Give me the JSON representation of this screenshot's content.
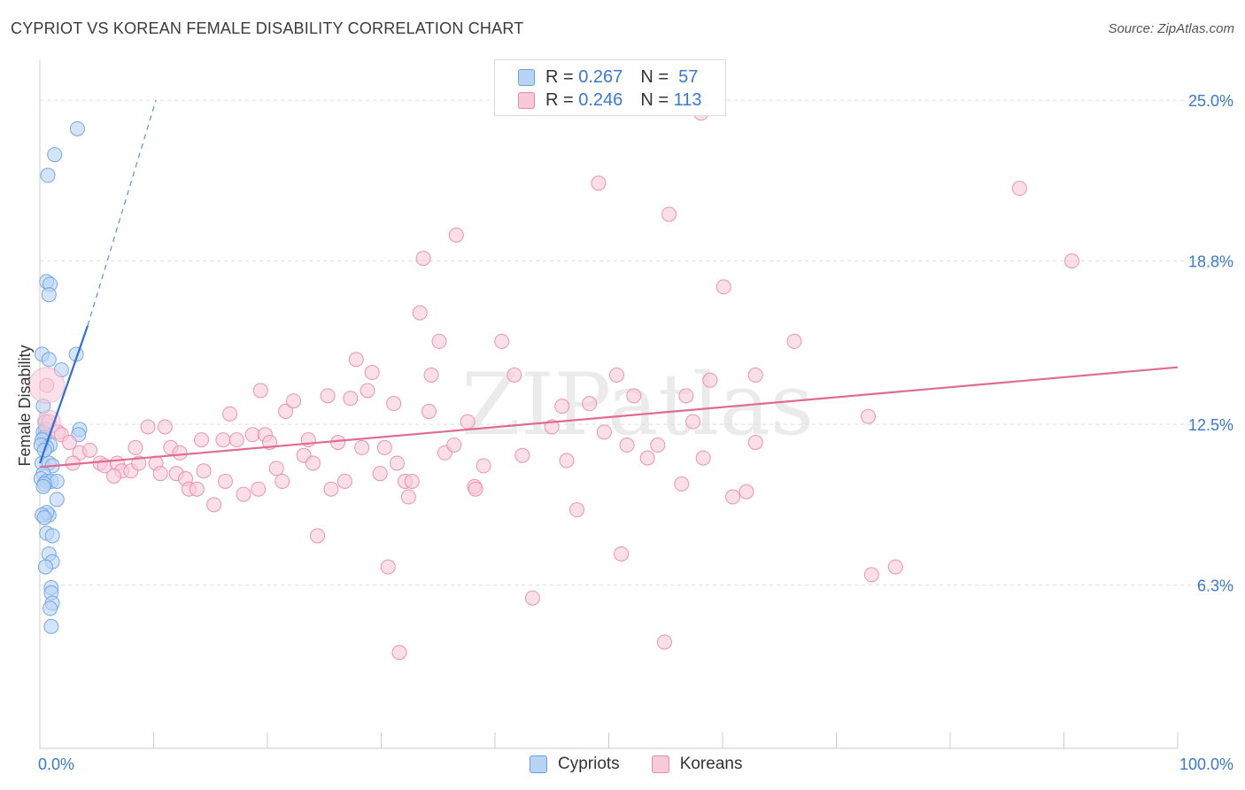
{
  "chart_data": {
    "type": "scatter",
    "title": "CYPRIOT VS KOREAN FEMALE DISABILITY CORRELATION CHART",
    "source": "Source: ZipAtlas.com",
    "xlabel": "",
    "ylabel": "Female Disability",
    "xlim": [
      0,
      100
    ],
    "ylim": [
      0,
      26.2
    ],
    "x_tick_labels": [
      "0.0%",
      "100.0%"
    ],
    "y_ticks": [
      6.3,
      12.5,
      18.8,
      25.0
    ],
    "y_tick_labels": [
      "6.3%",
      "12.5%",
      "18.8%",
      "25.0%"
    ],
    "grid": true,
    "legend": [
      {
        "name": "Cypriots",
        "r_label": "R =",
        "r": "0.267",
        "n_label": "N =",
        "n": "57",
        "color": "#6a9fe0",
        "fill": "#b8d4f5"
      },
      {
        "name": "Koreans",
        "r_label": "R =",
        "r": "0.246",
        "n_label": "N =",
        "n": "113",
        "color": "#e88aaa",
        "fill": "#f8c9d8"
      }
    ],
    "watermark": "ZIPatlas",
    "series": [
      {
        "name": "Cypriots",
        "trend": {
          "x": [
            0.0,
            4.2
          ],
          "y": [
            11.0,
            16.3
          ],
          "dash_to": [
            10.2,
            25.0
          ]
        },
        "points": [
          [
            3.3,
            23.9
          ],
          [
            1.3,
            22.9
          ],
          [
            0.7,
            22.1
          ],
          [
            0.6,
            18.0
          ],
          [
            0.9,
            17.9
          ],
          [
            0.8,
            17.5
          ],
          [
            0.2,
            15.2
          ],
          [
            0.8,
            15.0
          ],
          [
            3.2,
            15.2
          ],
          [
            1.9,
            14.6
          ],
          [
            0.3,
            13.2
          ],
          [
            0.5,
            12.6
          ],
          [
            0.5,
            12.3
          ],
          [
            0.3,
            12.2
          ],
          [
            3.5,
            12.3
          ],
          [
            3.4,
            12.1
          ],
          [
            0.4,
            12.0
          ],
          [
            0.2,
            11.9
          ],
          [
            0.9,
            11.7
          ],
          [
            0.6,
            11.6
          ],
          [
            0.1,
            11.7
          ],
          [
            0.4,
            11.5
          ],
          [
            0.2,
            11.0
          ],
          [
            0.8,
            11.0
          ],
          [
            1.1,
            10.9
          ],
          [
            0.3,
            10.6
          ],
          [
            0.1,
            10.4
          ],
          [
            0.6,
            10.3
          ],
          [
            1.0,
            10.3
          ],
          [
            1.5,
            10.3
          ],
          [
            0.4,
            10.2
          ],
          [
            0.3,
            10.1
          ],
          [
            1.5,
            9.6
          ],
          [
            0.8,
            9.0
          ],
          [
            0.6,
            9.1
          ],
          [
            0.2,
            9.0
          ],
          [
            0.4,
            8.9
          ],
          [
            0.6,
            8.3
          ],
          [
            1.1,
            8.2
          ],
          [
            0.8,
            7.5
          ],
          [
            1.1,
            7.2
          ],
          [
            0.5,
            7.0
          ],
          [
            1.0,
            6.2
          ],
          [
            1.0,
            6.0
          ],
          [
            1.1,
            5.6
          ],
          [
            0.9,
            5.4
          ],
          [
            1.0,
            4.7
          ]
        ]
      },
      {
        "name": "Koreans",
        "trend": {
          "x": [
            0.0,
            100.0
          ],
          "y": [
            10.85,
            14.7
          ]
        },
        "points": [
          [
            0.6,
            14.0
          ],
          [
            0.8,
            12.6
          ],
          [
            1.6,
            12.2
          ],
          [
            1.9,
            12.1
          ],
          [
            2.6,
            11.8
          ],
          [
            3.5,
            11.4
          ],
          [
            2.9,
            11.0
          ],
          [
            4.4,
            11.5
          ],
          [
            5.3,
            11.0
          ],
          [
            5.7,
            10.9
          ],
          [
            6.8,
            11.0
          ],
          [
            7.2,
            10.7
          ],
          [
            6.5,
            10.5
          ],
          [
            8.0,
            10.7
          ],
          [
            8.4,
            11.6
          ],
          [
            8.7,
            11.0
          ],
          [
            9.5,
            12.4
          ],
          [
            10.2,
            11.0
          ],
          [
            10.6,
            10.6
          ],
          [
            11.0,
            12.4
          ],
          [
            11.5,
            11.6
          ],
          [
            12.0,
            10.6
          ],
          [
            12.3,
            11.4
          ],
          [
            12.8,
            10.4
          ],
          [
            13.1,
            10.0
          ],
          [
            13.8,
            10.0
          ],
          [
            14.2,
            11.9
          ],
          [
            14.4,
            10.7
          ],
          [
            15.3,
            9.4
          ],
          [
            16.1,
            11.9
          ],
          [
            16.3,
            10.3
          ],
          [
            16.7,
            12.9
          ],
          [
            17.3,
            11.9
          ],
          [
            17.9,
            9.8
          ],
          [
            18.7,
            12.1
          ],
          [
            19.2,
            10.0
          ],
          [
            19.4,
            13.8
          ],
          [
            19.8,
            12.1
          ],
          [
            20.2,
            11.8
          ],
          [
            20.8,
            10.8
          ],
          [
            21.3,
            10.3
          ],
          [
            21.6,
            13.0
          ],
          [
            22.3,
            13.4
          ],
          [
            23.2,
            11.3
          ],
          [
            23.6,
            11.9
          ],
          [
            24.0,
            11.0
          ],
          [
            24.4,
            8.2
          ],
          [
            25.3,
            13.6
          ],
          [
            25.6,
            10.0
          ],
          [
            26.2,
            11.8
          ],
          [
            26.8,
            10.3
          ],
          [
            27.3,
            13.5
          ],
          [
            27.8,
            15.0
          ],
          [
            28.3,
            11.6
          ],
          [
            28.8,
            13.8
          ],
          [
            29.2,
            14.5
          ],
          [
            29.9,
            10.6
          ],
          [
            30.3,
            11.6
          ],
          [
            30.6,
            7.0
          ],
          [
            31.1,
            13.3
          ],
          [
            31.4,
            11.0
          ],
          [
            31.6,
            3.7
          ],
          [
            32.1,
            10.3
          ],
          [
            32.4,
            9.7
          ],
          [
            32.7,
            10.3
          ],
          [
            33.7,
            18.9
          ],
          [
            33.4,
            16.8
          ],
          [
            34.2,
            13.0
          ],
          [
            34.4,
            14.4
          ],
          [
            35.1,
            15.7
          ],
          [
            35.6,
            11.4
          ],
          [
            36.4,
            11.7
          ],
          [
            36.6,
            19.8
          ],
          [
            37.6,
            12.6
          ],
          [
            38.2,
            10.1
          ],
          [
            38.3,
            10.0
          ],
          [
            39.0,
            10.9
          ],
          [
            40.6,
            15.7
          ],
          [
            41.7,
            14.4
          ],
          [
            42.4,
            11.3
          ],
          [
            43.3,
            5.8
          ],
          [
            45.0,
            12.4
          ],
          [
            45.9,
            13.2
          ],
          [
            46.3,
            11.1
          ],
          [
            47.2,
            9.2
          ],
          [
            48.3,
            13.3
          ],
          [
            49.1,
            21.8
          ],
          [
            49.6,
            12.2
          ],
          [
            50.7,
            14.4
          ],
          [
            51.1,
            7.5
          ],
          [
            51.6,
            11.7
          ],
          [
            52.2,
            13.6
          ],
          [
            53.4,
            11.2
          ],
          [
            54.3,
            11.7
          ],
          [
            54.9,
            4.1
          ],
          [
            55.3,
            20.6
          ],
          [
            56.4,
            10.2
          ],
          [
            56.8,
            13.6
          ],
          [
            57.4,
            12.6
          ],
          [
            58.3,
            11.2
          ],
          [
            58.9,
            14.2
          ],
          [
            60.1,
            17.8
          ],
          [
            60.9,
            9.7
          ],
          [
            62.1,
            9.9
          ],
          [
            62.9,
            11.8
          ],
          [
            62.9,
            14.4
          ],
          [
            66.3,
            15.7
          ],
          [
            72.8,
            12.8
          ],
          [
            73.1,
            6.7
          ],
          [
            75.2,
            7.0
          ],
          [
            86.1,
            21.6
          ],
          [
            90.7,
            18.8
          ],
          [
            58.1,
            24.5
          ]
        ]
      }
    ]
  }
}
